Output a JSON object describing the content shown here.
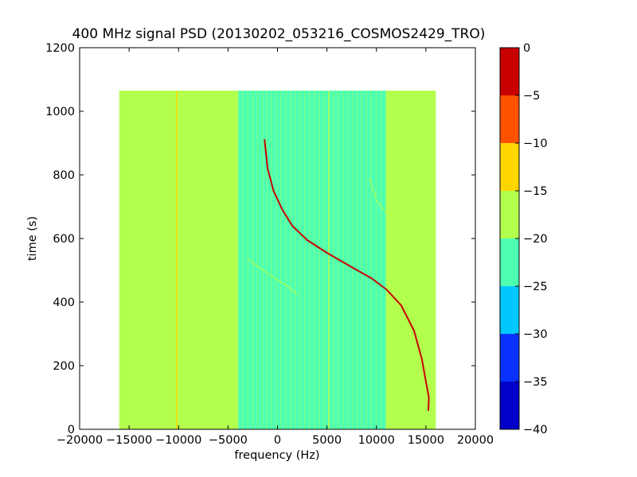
{
  "chart_data": {
    "type": "heatmap",
    "title": "400 MHz signal PSD (20130202_053216_COSMOS2429_TRO)",
    "xlabel": "frequency (Hz)",
    "ylabel": "time (s)",
    "xlim": [
      -20000,
      20000
    ],
    "ylim": [
      0,
      1200
    ],
    "xticks": [
      -20000,
      -15000,
      -10000,
      -5000,
      0,
      5000,
      10000,
      15000,
      20000
    ],
    "xtick_labels": [
      "−20000",
      "−15000",
      "−10000",
      "−5000",
      "0",
      "5000",
      "10000",
      "15000",
      "20000"
    ],
    "yticks": [
      0,
      200,
      400,
      600,
      800,
      1000,
      1200
    ],
    "ytick_labels": [
      "0",
      "200",
      "400",
      "600",
      "800",
      "1000",
      "1200"
    ],
    "data_extent": {
      "x": [
        -16000,
        16000
      ],
      "y": [
        0,
        1065
      ]
    },
    "background_regions": [
      {
        "x": [
          -16000,
          -4000
        ],
        "level": -18
      },
      {
        "x": [
          -4000,
          11000
        ],
        "level": -22
      },
      {
        "x": [
          11000,
          16000
        ],
        "level": -18
      }
    ],
    "vertical_lines": [
      {
        "x": -10200,
        "level": -12
      },
      {
        "x": 5200,
        "level": -18
      }
    ],
    "signal_trace": {
      "level": -2,
      "points": [
        [
          -1300,
          910
        ],
        [
          -1000,
          820
        ],
        [
          -400,
          750
        ],
        [
          500,
          690
        ],
        [
          1500,
          640
        ],
        [
          3000,
          595
        ],
        [
          5000,
          555
        ],
        [
          7500,
          510
        ],
        [
          9500,
          475
        ],
        [
          11000,
          440
        ],
        [
          12500,
          390
        ],
        [
          13800,
          310
        ],
        [
          14600,
          220
        ],
        [
          15000,
          150
        ],
        [
          15300,
          100
        ],
        [
          15250,
          60
        ]
      ]
    },
    "faint_trace": {
      "level": -16,
      "points": [
        [
          -3000,
          535
        ],
        [
          -1000,
          490
        ],
        [
          1000,
          450
        ],
        [
          2000,
          425
        ]
      ]
    },
    "faint_trace_2": {
      "level": -16,
      "points": [
        [
          9300,
          790
        ],
        [
          10000,
          720
        ],
        [
          11000,
          680
        ],
        [
          12000,
          650
        ]
      ]
    },
    "colorbar": {
      "levels": [
        -40,
        -35,
        -30,
        -25,
        -20,
        -15,
        -10,
        -5,
        0
      ],
      "tick_labels": [
        "−40",
        "−35",
        "−30",
        "−25",
        "−20",
        "−15",
        "−10",
        "−5",
        "0"
      ],
      "colors": [
        "#0000c8",
        "#0a32ff",
        "#00c8ff",
        "#4dffb3",
        "#b3ff4d",
        "#ffd600",
        "#ff5200",
        "#c80000"
      ]
    }
  }
}
